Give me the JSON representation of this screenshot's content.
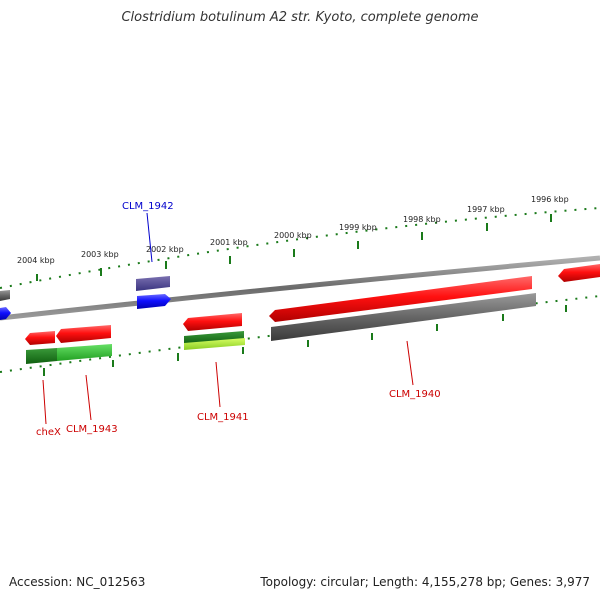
{
  "title": "Clostridium botulinum A2 str. Kyoto, complete genome",
  "footer": {
    "accession": "Accession: NC_012563",
    "summary": "Topology: circular; Length: 4,155,278 bp; Genes: 3,977"
  },
  "ruler": {
    "ticks": [
      {
        "label": "2004 kbp"
      },
      {
        "label": "2003 kbp"
      },
      {
        "label": "2002 kbp"
      },
      {
        "label": "2001 kbp"
      },
      {
        "label": "2000 kbp"
      },
      {
        "label": "1999 kbp"
      },
      {
        "label": "1998 kbp"
      },
      {
        "label": "1997 kbp"
      },
      {
        "label": "1996 kbp"
      }
    ]
  },
  "gene_labels": [
    {
      "name": "CLM_1942",
      "color": "#0000cc"
    },
    {
      "name": "CLM_1941",
      "color": "#cc0000"
    },
    {
      "name": "CLM_1940",
      "color": "#cc0000"
    },
    {
      "name": "cheX",
      "color": "#cc0000"
    },
    {
      "name": "CLM_1943",
      "color": "#cc0000"
    }
  ],
  "colors": {
    "forward_gene": "#ff1a1a",
    "reverse_gene": "#1a1aff",
    "backbone": "#7a7a7a",
    "ruler": "#1a7a1a"
  }
}
